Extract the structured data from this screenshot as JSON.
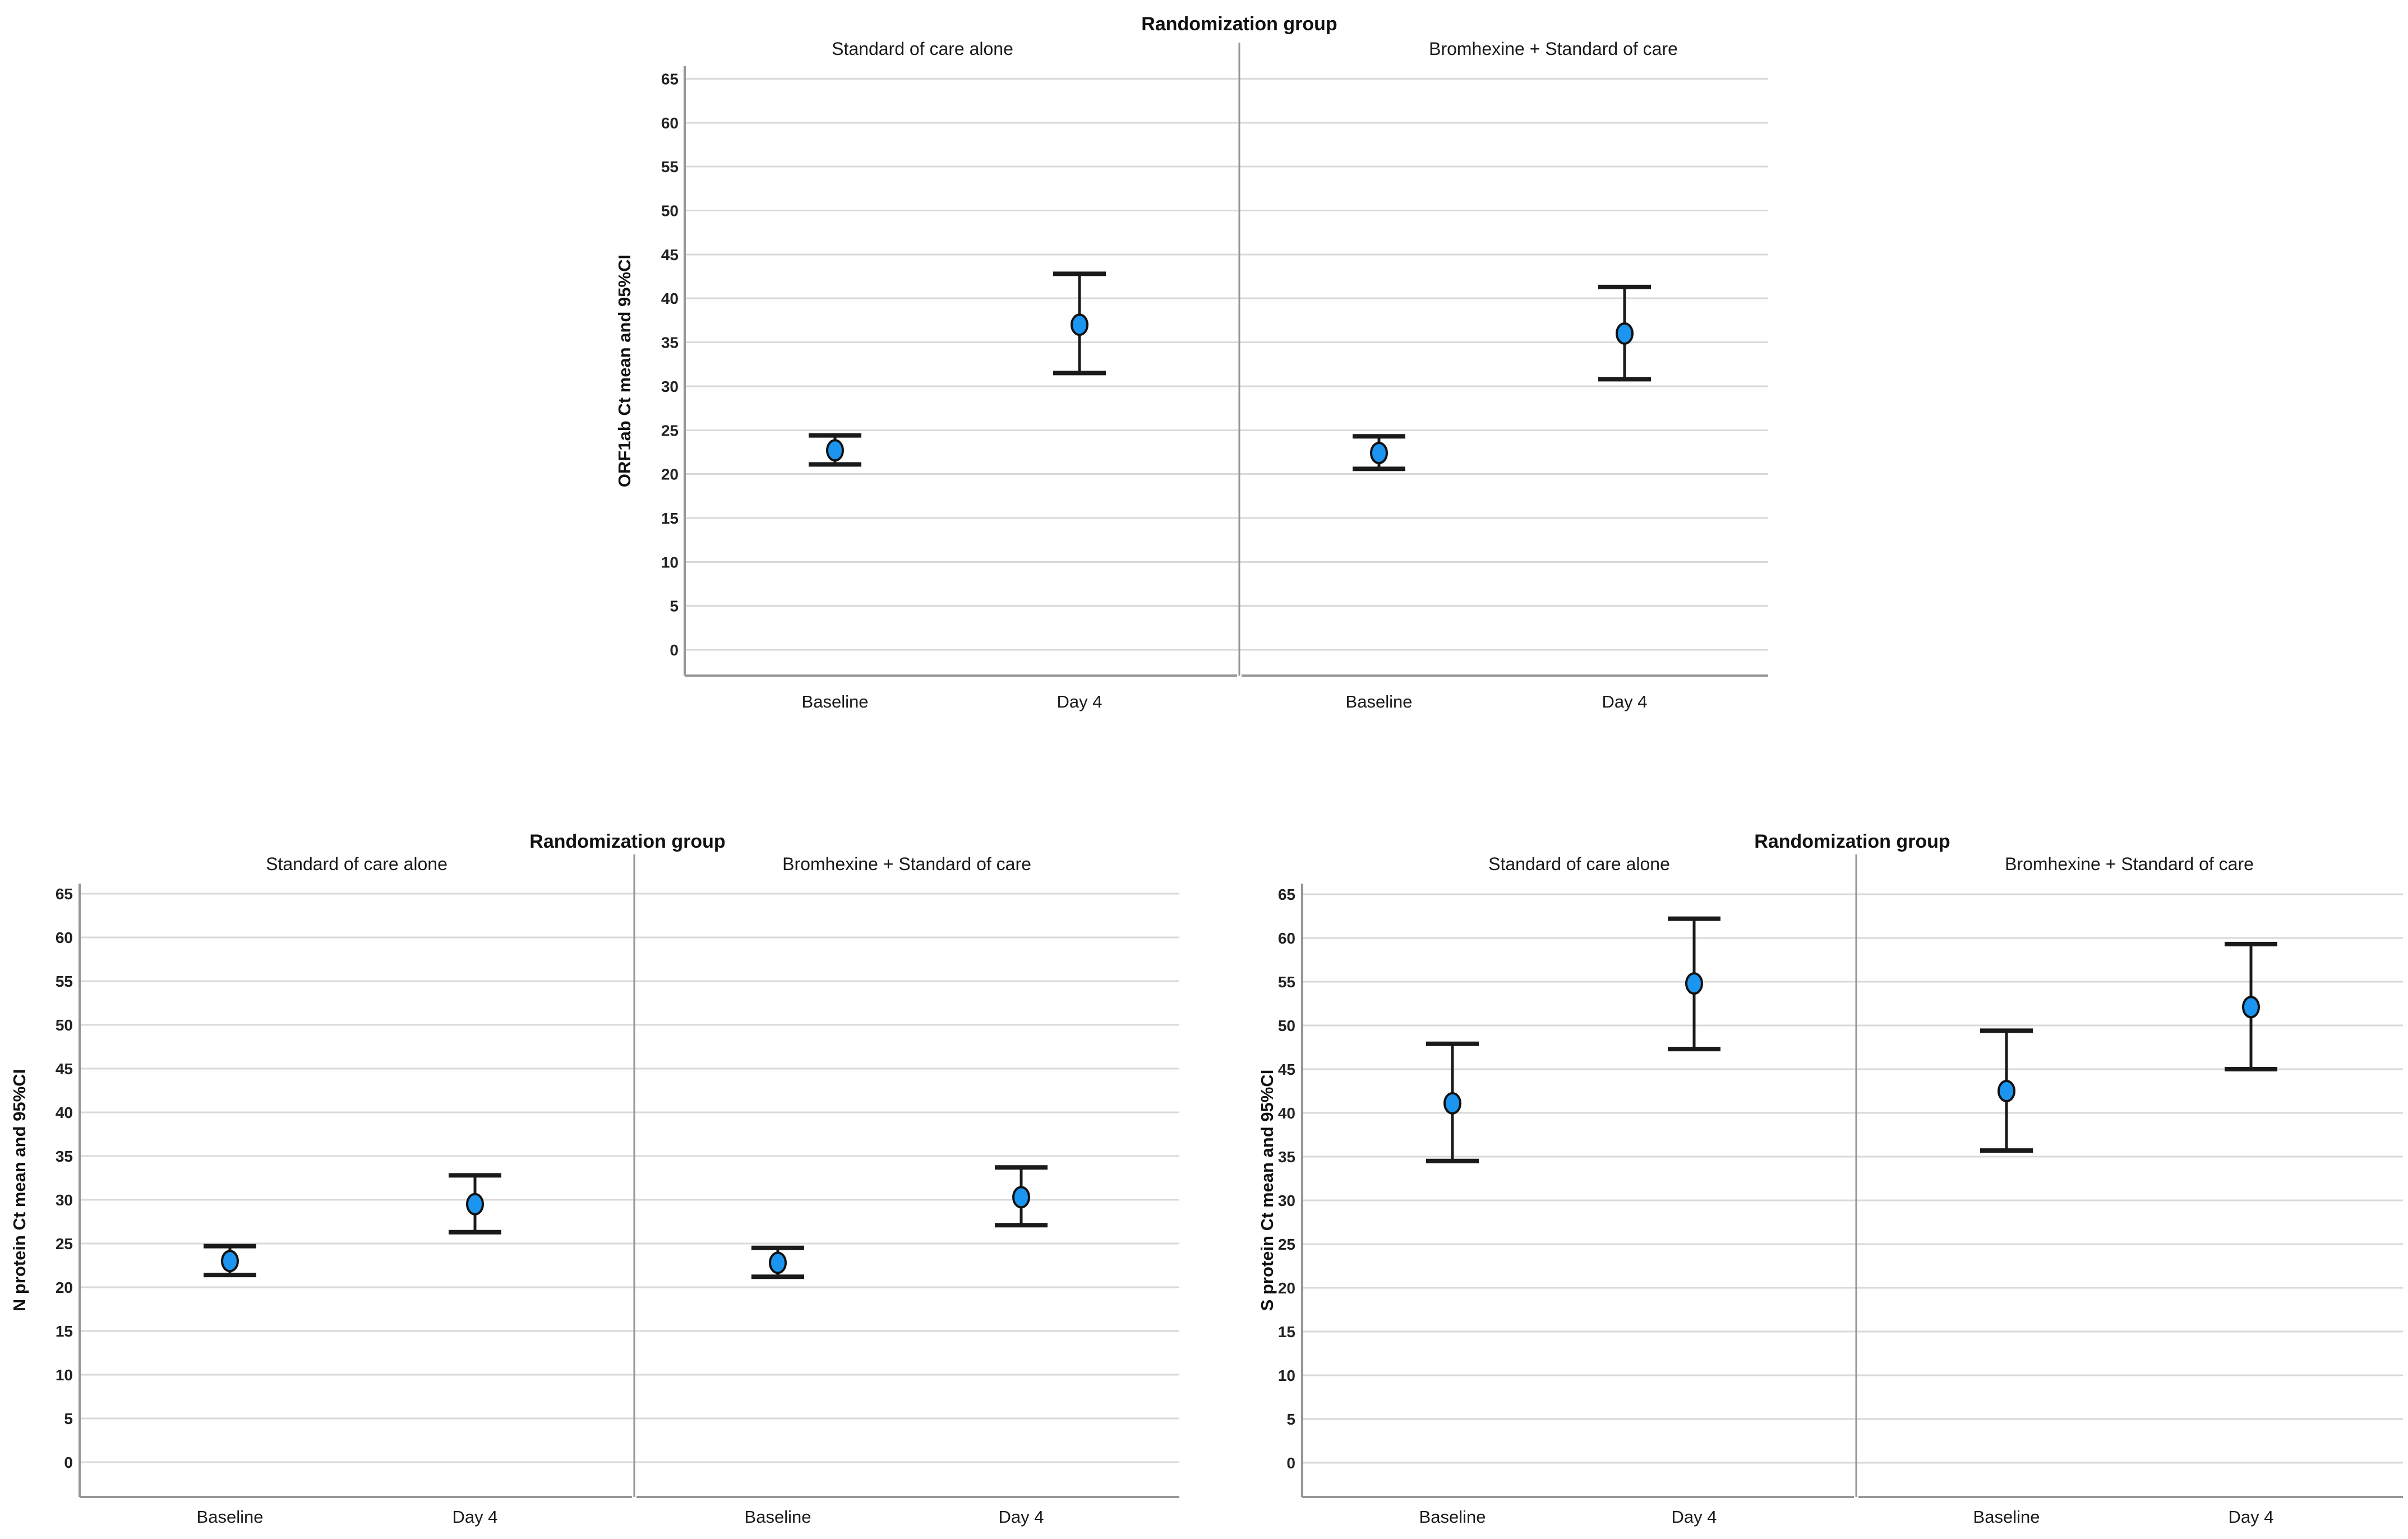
{
  "figure": {
    "facet_title": "Randomization group",
    "x_categories": [
      "Baseline",
      "Day 4"
    ],
    "panel_titles": [
      "Standard of care alone",
      "Bromhexine + Standard of care"
    ]
  },
  "style": {
    "point_fill": "#1b95ef",
    "point_stroke": "#111111",
    "errorbar_color": "#1a1a1a",
    "grid_color": "#d9d9d9",
    "axis_color": "#969696",
    "text_color": "#1a1a1a",
    "background": "#ffffff"
  },
  "chart_data": [
    {
      "type": "errorbar",
      "title": "Randomization group",
      "ylabel": "ORF1ab Ct mean and 95%CI",
      "xlabel": "",
      "ylim": [
        0,
        65
      ],
      "ytick_step": 5,
      "yticks": [
        0,
        5,
        10,
        15,
        20,
        25,
        30,
        35,
        40,
        45,
        50,
        55,
        60,
        65
      ],
      "grid": true,
      "categories": [
        "Baseline",
        "Day 4"
      ],
      "panels": [
        {
          "label": "Standard of care alone",
          "points": [
            {
              "category": "Baseline",
              "mean": 22.7,
              "ci_low": 21.1,
              "ci_high": 24.4
            },
            {
              "category": "Day 4",
              "mean": 37.0,
              "ci_low": 31.5,
              "ci_high": 42.8
            }
          ]
        },
        {
          "label": "Bromhexine + Standard of care",
          "points": [
            {
              "category": "Baseline",
              "mean": 22.4,
              "ci_low": 20.6,
              "ci_high": 24.3
            },
            {
              "category": "Day 4",
              "mean": 36.0,
              "ci_low": 30.8,
              "ci_high": 41.3
            }
          ]
        }
      ]
    },
    {
      "type": "errorbar",
      "title": "Randomization group",
      "ylabel": "N protein Ct mean and 95%CI",
      "xlabel": "",
      "ylim": [
        0,
        65
      ],
      "ytick_step": 5,
      "yticks": [
        0,
        5,
        10,
        15,
        20,
        25,
        30,
        35,
        40,
        45,
        50,
        55,
        60,
        65
      ],
      "grid": true,
      "categories": [
        "Baseline",
        "Day 4"
      ],
      "panels": [
        {
          "label": "Standard of care alone",
          "points": [
            {
              "category": "Baseline",
              "mean": 23.0,
              "ci_low": 21.4,
              "ci_high": 24.7
            },
            {
              "category": "Day 4",
              "mean": 29.5,
              "ci_low": 26.3,
              "ci_high": 32.8
            }
          ]
        },
        {
          "label": "Bromhexine + Standard of care",
          "points": [
            {
              "category": "Baseline",
              "mean": 22.8,
              "ci_low": 21.2,
              "ci_high": 24.5
            },
            {
              "category": "Day 4",
              "mean": 30.3,
              "ci_low": 27.1,
              "ci_high": 33.7
            }
          ]
        }
      ]
    },
    {
      "type": "errorbar",
      "title": "Randomization group",
      "ylabel": "S protein Ct mean and 95%CI",
      "xlabel": "",
      "ylim": [
        0,
        65
      ],
      "ytick_step": 5,
      "yticks": [
        0,
        5,
        10,
        15,
        20,
        25,
        30,
        35,
        40,
        45,
        50,
        55,
        60,
        65
      ],
      "grid": true,
      "categories": [
        "Baseline",
        "Day 4"
      ],
      "panels": [
        {
          "label": "Standard of care alone",
          "points": [
            {
              "category": "Baseline",
              "mean": 41.1,
              "ci_low": 34.5,
              "ci_high": 47.9
            },
            {
              "category": "Day 4",
              "mean": 54.8,
              "ci_low": 47.3,
              "ci_high": 62.2
            }
          ]
        },
        {
          "label": "Bromhexine + Standard of care",
          "points": [
            {
              "category": "Baseline",
              "mean": 42.5,
              "ci_low": 35.7,
              "ci_high": 49.4
            },
            {
              "category": "Day 4",
              "mean": 52.1,
              "ci_low": 45.0,
              "ci_high": 59.3
            }
          ]
        }
      ]
    }
  ]
}
